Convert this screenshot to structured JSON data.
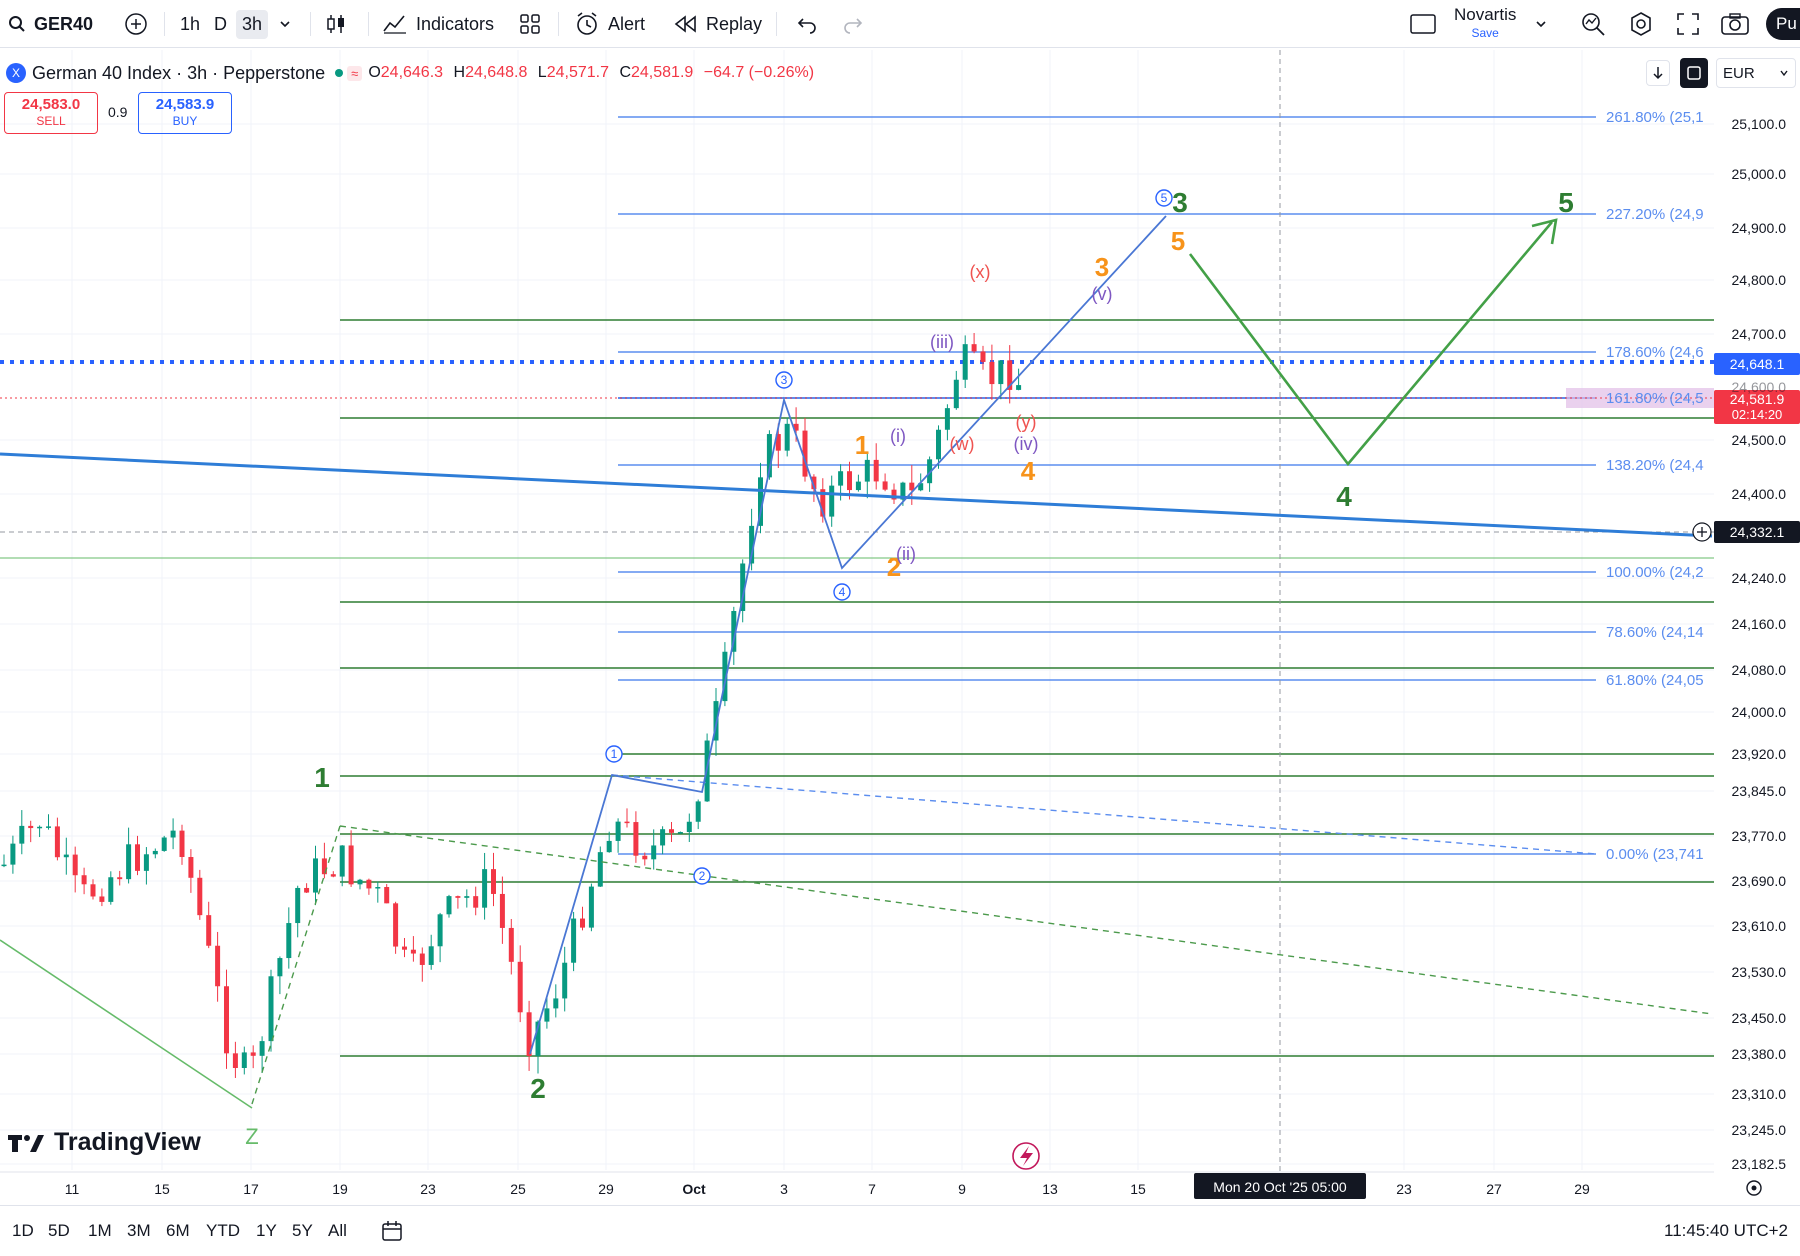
{
  "toolbar": {
    "symbol": "GER40",
    "timeframes": [
      "1h",
      "D",
      "3h"
    ],
    "active_timeframe": "3h",
    "indicators_label": "Indicators",
    "alert_label": "Alert",
    "replay_label": "Replay",
    "layout_name": "Novartis",
    "layout_sub": "Save",
    "publish_label": "Pu"
  },
  "legend": {
    "title": "German 40 Index · 3h · Pepperstone",
    "symbol_icon": "X",
    "o_label": "O",
    "o_val": "24,646.3",
    "h_label": "H",
    "h_val": "24,648.8",
    "l_label": "L",
    "l_val": "24,571.7",
    "c_label": "C",
    "c_val": "24,581.9",
    "change": "−64.7 (−0.26%)"
  },
  "trade": {
    "sell_price": "24,583.0",
    "sell_label": "SELL",
    "spread": "0.9",
    "buy_price": "24,583.9",
    "buy_label": "BUY"
  },
  "currency": "EUR",
  "price_axis": [
    "25,100.0",
    "25,000.0",
    "24,900.0",
    "24,800.0",
    "24,700.0",
    "24,500.0",
    "24,400.0",
    "24,240.0",
    "24,160.0",
    "24,080.0",
    "24,000.0",
    "23,920.0",
    "23,845.0",
    "23,770.0",
    "23,690.0",
    "23,610.0",
    "23,530.0",
    "23,450.0",
    "23,380.0",
    "23,310.0",
    "23,245.0",
    "23,182.5"
  ],
  "price_tags": {
    "high": "24,648.1",
    "last": "24,581.9",
    "countdown": "02:14:20",
    "cursor": "24,332.1",
    "partial": "24,600.0"
  },
  "fib_labels": [
    "261.80% (25,1",
    "227.20% (24,9",
    "178.60% (24,6",
    "161.80% (24,5",
    "138.20% (24,4",
    "100.00% (24,2",
    "78.60% (24,14",
    "61.80% (24,05",
    "0.00% (23,741"
  ],
  "time_axis": [
    "11",
    "15",
    "17",
    "19",
    "23",
    "25",
    "29",
    "Oct",
    "3",
    "7",
    "9",
    "13",
    "15",
    "23",
    "27",
    "29"
  ],
  "crosshair_time": "Mon 20 Oct '25   05:00",
  "waves": {
    "green_1": "1",
    "green_2": "2",
    "green_3": "3",
    "green_4": "4",
    "green_5": "5",
    "green_z": "Z",
    "orange_1": "1",
    "orange_2": "2",
    "orange_3": "3",
    "orange_4": "4",
    "orange_5": "5",
    "circ_1": "1",
    "circ_2": "2",
    "circ_3": "3",
    "circ_4": "4",
    "circ_5": "5",
    "purple_i": "(i)",
    "purple_ii": "(ii)",
    "purple_iii": "(iii)",
    "purple_iv": "(iv)",
    "purple_v": "(v)",
    "red_w": "(w)",
    "red_x": "(x)",
    "red_y": "(y)"
  },
  "watermark": "TradingView",
  "ranges": [
    "1D",
    "5D",
    "1M",
    "3M",
    "6M",
    "YTD",
    "1Y",
    "5Y",
    "All"
  ],
  "clock": "11:45:40 UTC+2",
  "colors": {
    "up": "#089981",
    "down": "#f23645",
    "blue": "#2962ff",
    "fib": "#5b8def",
    "green": "#2e7d32",
    "orange": "#f7931a",
    "purple": "#7e57c2",
    "red": "#ef5350"
  }
}
